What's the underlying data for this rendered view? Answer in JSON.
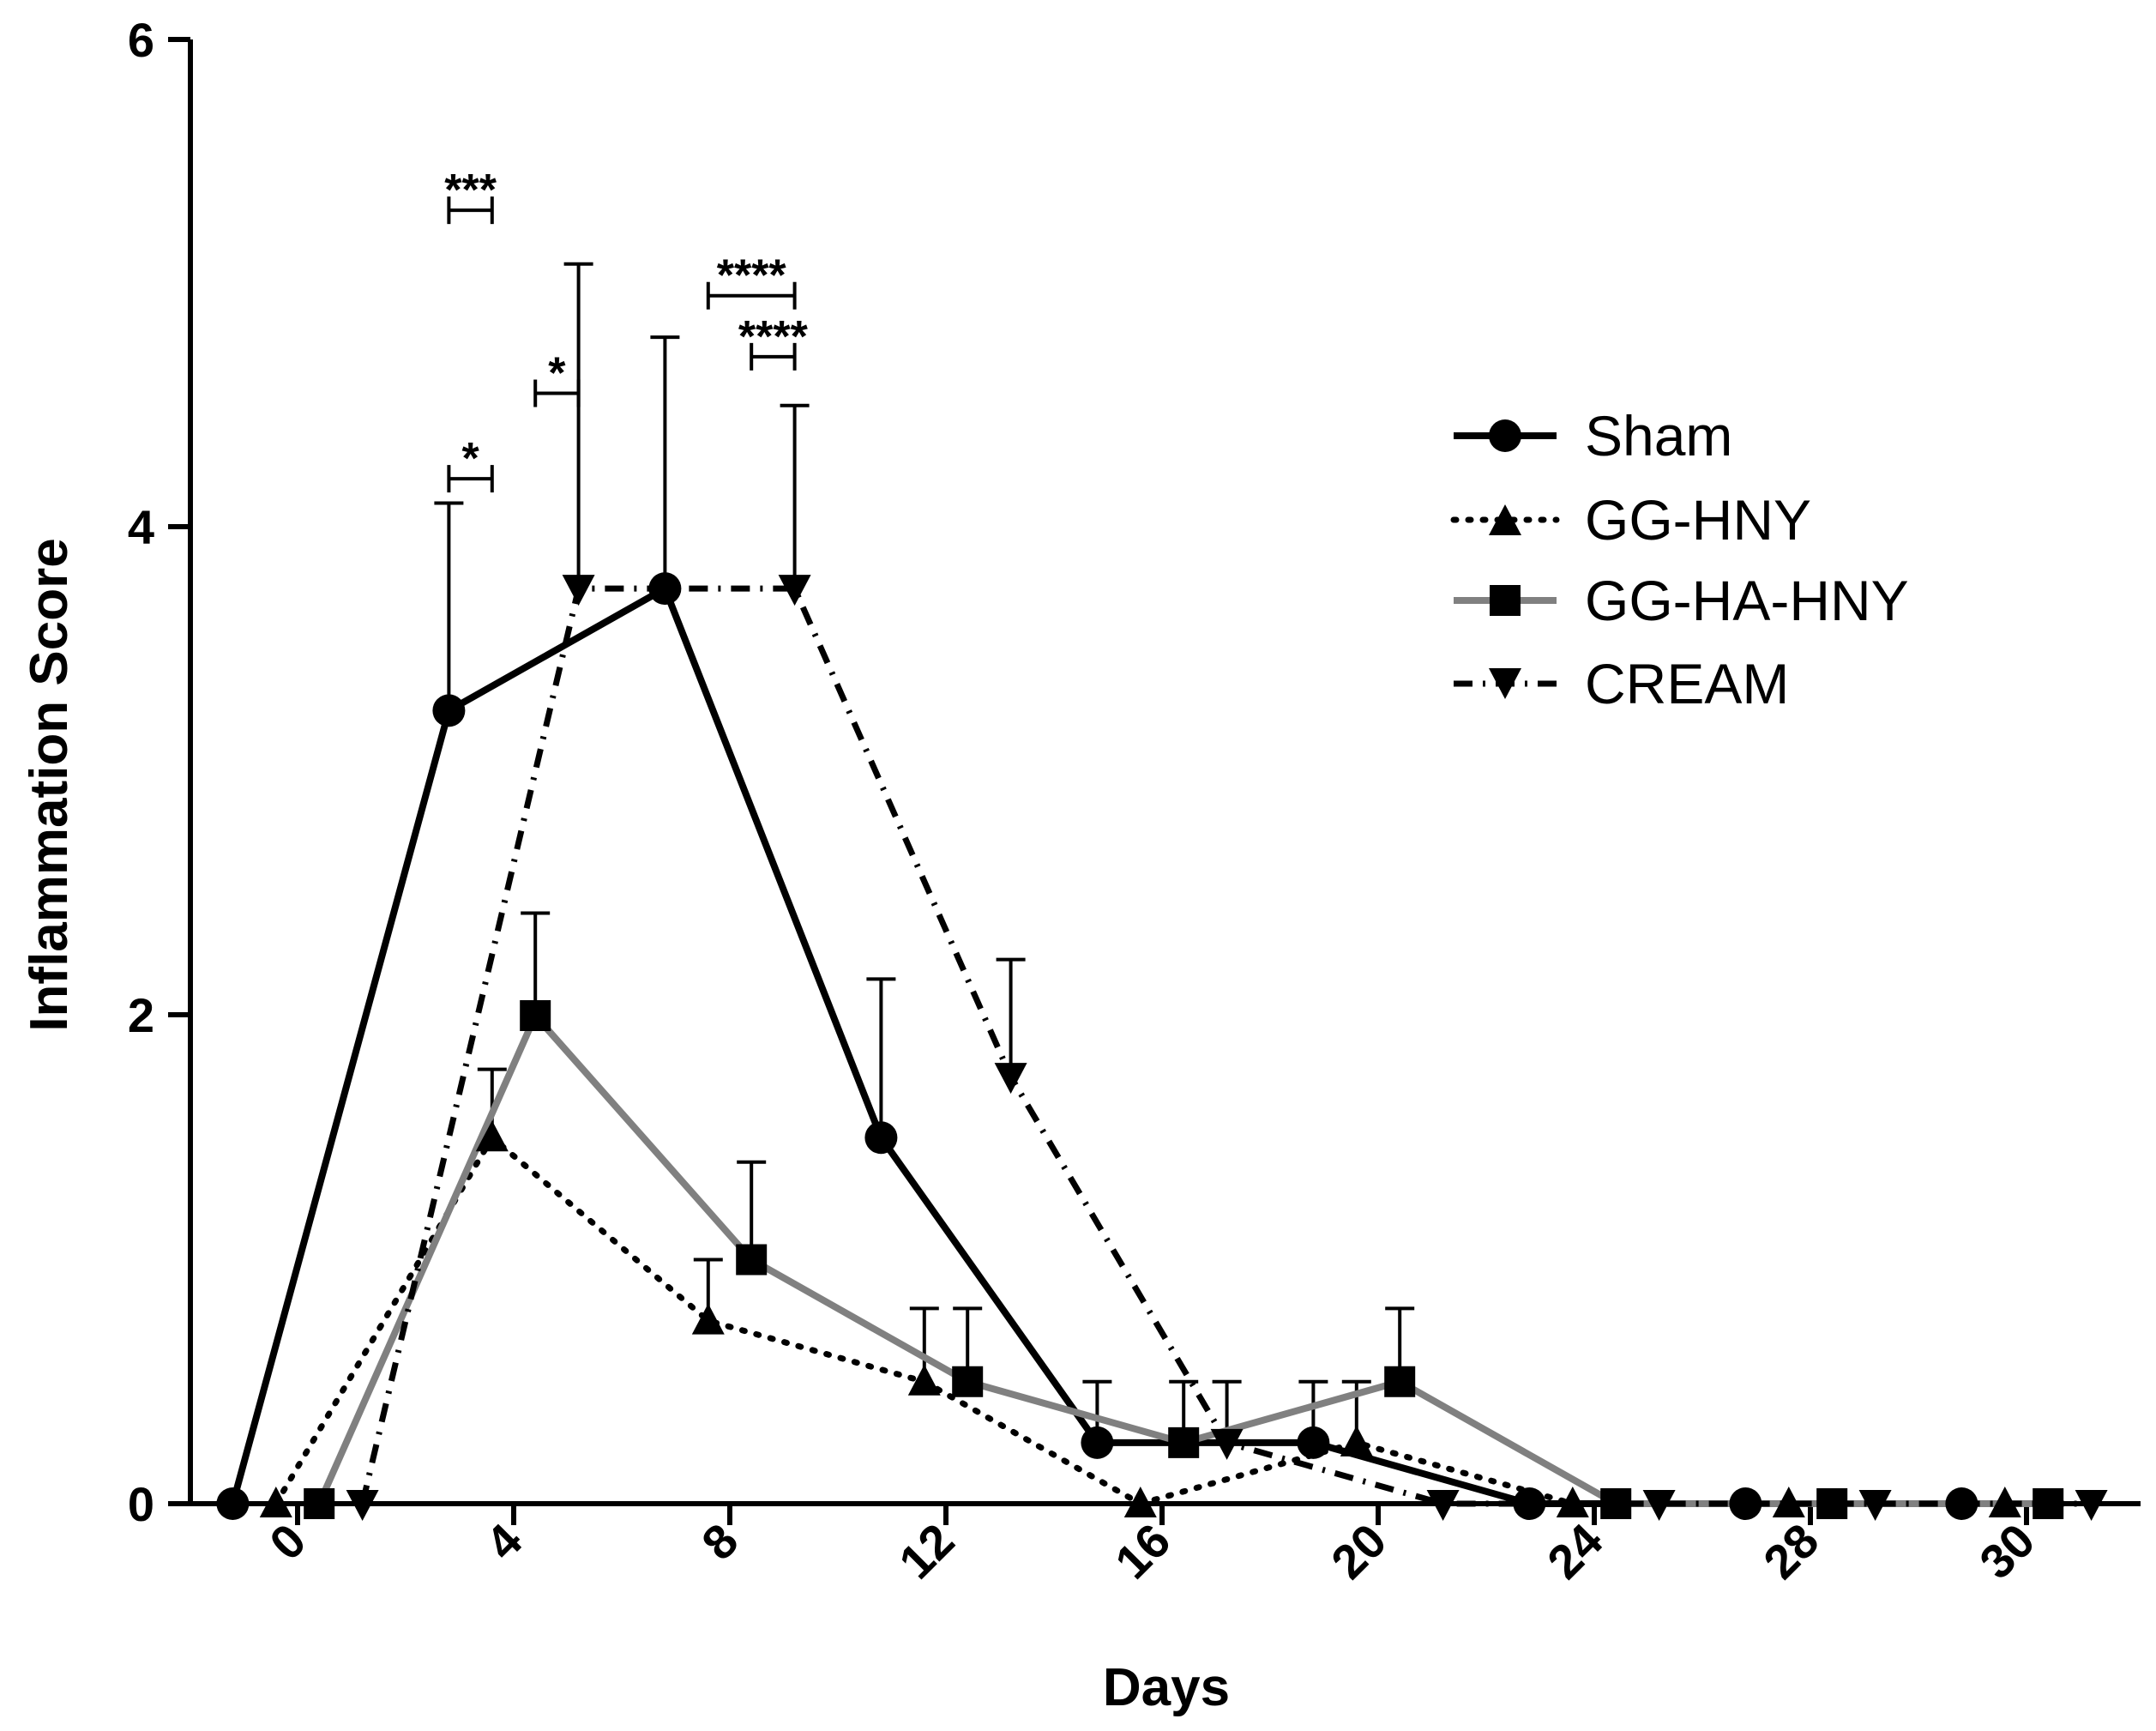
{
  "chart_data": {
    "type": "line",
    "title": "",
    "xlabel": "Days",
    "ylabel": "Inflammation Score",
    "ylim": [
      0,
      6
    ],
    "yticks": [
      "0",
      "2",
      "4",
      "6"
    ],
    "xticks": [
      "0",
      "4",
      "8",
      "12",
      "16",
      "20",
      "24",
      "28",
      "30"
    ],
    "x_categories": [
      0,
      4,
      8,
      12,
      16,
      20,
      24,
      28,
      30
    ],
    "legend_position": "right",
    "series": [
      {
        "name": "Sham",
        "color": "#000000",
        "line_style": "solid",
        "marker": "circle",
        "x_offset": -0.3,
        "values": [
          0,
          3.25,
          3.75,
          1.5,
          0.25,
          0.25,
          0,
          0,
          0
        ],
        "errors": [
          0,
          0.85,
          1.03,
          0.65,
          0.25,
          0.25,
          0,
          0,
          0
        ]
      },
      {
        "name": "GG-HNY",
        "color": "#000000",
        "line_style": "dotted",
        "marker": "triangle-up",
        "x_offset": -0.1,
        "values": [
          0,
          1.5,
          0.75,
          0.5,
          0,
          0.25,
          0,
          0,
          0
        ],
        "errors": [
          0,
          0.28,
          0.25,
          0.3,
          0,
          0.25,
          0,
          0,
          0
        ]
      },
      {
        "name": "GG-HA-HNY",
        "color": "#808080",
        "line_style": "solid",
        "marker": "square",
        "x_offset": 0.1,
        "values": [
          0,
          2.0,
          1.0,
          0.5,
          0.25,
          0.5,
          0,
          0,
          0
        ],
        "errors": [
          0,
          0.42,
          0.4,
          0.3,
          0.25,
          0.3,
          0,
          0,
          0
        ]
      },
      {
        "name": "CREAM",
        "color": "#000000",
        "line_style": "dashdot",
        "marker": "triangle-down",
        "x_offset": 0.3,
        "values": [
          0,
          3.75,
          3.75,
          1.75,
          0.25,
          0,
          0,
          0,
          0
        ],
        "errors": [
          0,
          1.33,
          0.75,
          0.48,
          0.25,
          0,
          0,
          0,
          0
        ]
      }
    ],
    "annotations": [
      {
        "text": "*",
        "from_series": "Sham",
        "to_series": "GG-HNY",
        "x": 4,
        "y": 4.2
      },
      {
        "text": "***",
        "from_series": "Sham",
        "to_series": "GG-HNY",
        "x": 4,
        "y": 5.3
      },
      {
        "text": "*",
        "from_series": "CREAM",
        "to_series": "GG-HA-HNY",
        "x": 4,
        "y": 4.55
      },
      {
        "text": "****",
        "from_series": "GG-HNY",
        "to_series": "CREAM",
        "x": 8,
        "y": 4.95
      },
      {
        "text": "****",
        "from_series": "GG-HA-HNY",
        "to_series": "CREAM",
        "x": 8,
        "y": 4.7
      }
    ]
  }
}
